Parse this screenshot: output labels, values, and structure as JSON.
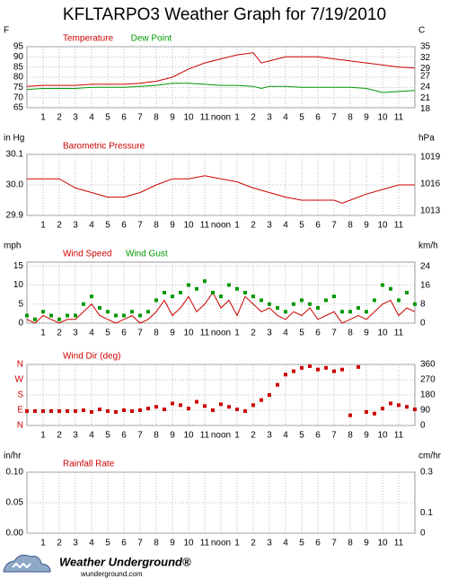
{
  "title": "KFLTARPO3 Weather Graph for 7/19/2010",
  "footer": {
    "brand": "Weather Underground®",
    "site": "wunderground.com"
  },
  "chart_data": [
    {
      "type": "line",
      "y_label": "F",
      "y2_label": "C",
      "x": [
        0,
        1,
        2,
        3,
        4,
        5,
        6,
        7,
        8,
        9,
        10,
        11,
        12,
        13,
        14,
        14.5,
        15,
        16,
        17,
        18,
        19,
        20,
        21,
        22,
        23,
        24
      ],
      "series": [
        {
          "name": "Temperature",
          "color": "#cc0000",
          "kind": "line",
          "values": [
            75.5,
            76,
            76,
            76,
            76.5,
            76.5,
            76.5,
            77,
            78,
            80,
            84,
            87,
            89,
            91,
            92,
            87,
            88,
            90,
            90,
            90,
            89,
            88,
            87,
            86,
            85,
            84.5
          ]
        },
        {
          "name": "Dew Point",
          "color": "#009900",
          "kind": "line",
          "values": [
            74,
            74.5,
            74.5,
            74.5,
            75,
            75,
            75,
            75.5,
            76,
            77,
            77,
            76.5,
            76,
            76,
            75.5,
            74.5,
            75.5,
            75.5,
            75,
            75,
            75,
            75,
            74.5,
            72.5,
            73,
            73.5
          ]
        }
      ],
      "xlim": [
        0,
        24
      ],
      "xticks": [
        1,
        2,
        3,
        4,
        5,
        6,
        7,
        8,
        9,
        10,
        11,
        {
          "value": 12,
          "label": "noon"
        },
        {
          "value": 13,
          "label": "1"
        },
        {
          "value": 14,
          "label": "2"
        },
        {
          "value": 15,
          "label": "3"
        },
        {
          "value": 16,
          "label": "4"
        },
        {
          "value": 17,
          "label": "5"
        },
        {
          "value": 18,
          "label": "6"
        },
        {
          "value": 19,
          "label": "7"
        },
        {
          "value": 20,
          "label": "8"
        },
        {
          "value": 21,
          "label": "9"
        },
        {
          "value": 22,
          "label": "10"
        },
        {
          "value": 23,
          "label": "11"
        }
      ],
      "ylim": [
        65,
        95
      ],
      "yticks": [
        65,
        70,
        75,
        80,
        85,
        90,
        95
      ],
      "y2lim": [
        18.333,
        35
      ],
      "y2ticks": [
        18,
        21,
        24,
        27,
        29,
        32,
        35
      ],
      "grid": true
    },
    {
      "type": "line",
      "y_label": "in Hg",
      "y2_label": "hPa",
      "x": [
        0,
        1,
        2,
        3,
        4,
        5,
        6,
        7,
        8,
        9,
        10,
        11,
        12,
        13,
        14,
        15,
        16,
        17,
        18,
        19,
        19.5,
        20,
        21,
        22,
        23,
        24
      ],
      "series": [
        {
          "name": "Barometric Pressure",
          "color": "#cc0000",
          "kind": "line",
          "values": [
            30.02,
            30.02,
            30.02,
            29.99,
            29.975,
            29.96,
            29.96,
            29.975,
            30,
            30.02,
            30.02,
            30.03,
            30.02,
            30.01,
            29.99,
            29.975,
            29.96,
            29.95,
            29.95,
            29.95,
            29.94,
            29.95,
            29.97,
            29.985,
            30,
            30
          ]
        }
      ],
      "xlim": [
        0,
        24
      ],
      "xticks": [
        1,
        2,
        3,
        4,
        5,
        6,
        7,
        8,
        9,
        10,
        11,
        {
          "value": 12,
          "label": "noon"
        },
        {
          "value": 13,
          "label": "1"
        },
        {
          "value": 14,
          "label": "2"
        },
        {
          "value": 15,
          "label": "3"
        },
        {
          "value": 16,
          "label": "4"
        },
        {
          "value": 17,
          "label": "5"
        },
        {
          "value": 18,
          "label": "6"
        },
        {
          "value": 19,
          "label": "7"
        },
        {
          "value": 20,
          "label": "8"
        },
        {
          "value": 21,
          "label": "9"
        },
        {
          "value": 22,
          "label": "10"
        },
        {
          "value": 23,
          "label": "11"
        }
      ],
      "ylim": [
        29.9,
        30.1
      ],
      "yticks": [
        29.9,
        {
          "value": 30,
          "label": "30.0"
        },
        30.1
      ],
      "y2lim": [
        1012.5,
        1019.3
      ],
      "y2ticks": [
        1013,
        1016,
        1019
      ],
      "grid": true
    },
    {
      "type": "line",
      "y_label": "mph",
      "y2_label": "km/h",
      "x": [
        0,
        0.5,
        1,
        1.5,
        2,
        2.5,
        3,
        3.5,
        4,
        4.5,
        5,
        5.5,
        6,
        6.5,
        7,
        7.5,
        8,
        8.5,
        9,
        9.5,
        10,
        10.5,
        11,
        11.5,
        12,
        12.5,
        13,
        13.5,
        14,
        14.5,
        15,
        15.5,
        16,
        16.5,
        17,
        17.5,
        18,
        18.5,
        19,
        19.5,
        20,
        20.5,
        21,
        21.5,
        22,
        22.5,
        23,
        23.5,
        24
      ],
      "series": [
        {
          "name": "Wind Speed",
          "color": "#cc0000",
          "kind": "line",
          "values": [
            1,
            0,
            2,
            1,
            0,
            1,
            1,
            3,
            5,
            2,
            1,
            0,
            1,
            2,
            0,
            1,
            3,
            6,
            2,
            4,
            7,
            3,
            5,
            8,
            4,
            6,
            2,
            7,
            5,
            3,
            4,
            2,
            1,
            3,
            2,
            4,
            1,
            2,
            3,
            0,
            1,
            2,
            1,
            3,
            5,
            6,
            2,
            4,
            3
          ]
        },
        {
          "name": "Wind Gust",
          "color": "#009900",
          "kind": "scatter",
          "values": [
            2,
            1,
            3,
            2,
            1,
            2,
            2,
            5,
            7,
            4,
            3,
            2,
            2,
            3,
            2,
            3,
            6,
            8,
            7,
            8,
            10,
            9,
            11,
            8,
            7,
            10,
            9,
            8,
            7,
            6,
            5,
            4,
            3,
            5,
            6,
            5,
            4,
            6,
            7,
            3,
            3,
            4,
            3,
            6,
            10,
            9,
            6,
            8,
            5
          ]
        }
      ],
      "xlim": [
        0,
        24
      ],
      "xticks": [
        1,
        2,
        3,
        4,
        5,
        6,
        7,
        8,
        9,
        10,
        11,
        {
          "value": 12,
          "label": "noon"
        },
        {
          "value": 13,
          "label": "1"
        },
        {
          "value": 14,
          "label": "2"
        },
        {
          "value": 15,
          "label": "3"
        },
        {
          "value": 16,
          "label": "4"
        },
        {
          "value": 17,
          "label": "5"
        },
        {
          "value": 18,
          "label": "6"
        },
        {
          "value": 19,
          "label": "7"
        },
        {
          "value": 20,
          "label": "8"
        },
        {
          "value": 21,
          "label": "9"
        },
        {
          "value": 22,
          "label": "10"
        },
        {
          "value": 23,
          "label": "11"
        }
      ],
      "ylim": [
        0,
        16
      ],
      "yticks": [
        0,
        5,
        10,
        15
      ],
      "y2lim": [
        0,
        25.75
      ],
      "y2ticks": [
        0,
        8,
        16,
        24
      ],
      "grid": true
    },
    {
      "type": "scatter",
      "x": [
        0,
        0.5,
        1,
        1.5,
        2,
        2.5,
        3,
        3.5,
        4,
        4.5,
        5,
        5.5,
        6,
        6.5,
        7,
        7.5,
        8,
        8.5,
        9,
        9.5,
        10,
        10.5,
        11,
        11.5,
        12,
        12.5,
        13,
        13.5,
        14,
        14.5,
        15,
        15.5,
        16,
        16.5,
        17,
        17.5,
        18,
        18.5,
        19,
        19.5,
        20,
        20.5,
        21,
        21.5,
        22,
        22.5,
        23,
        23.5,
        24
      ],
      "series": [
        {
          "name": "Wind Dir (deg)",
          "color": "#cc0000",
          "kind": "scatter",
          "values": [
            85,
            85,
            85,
            85,
            85,
            85,
            85,
            90,
            80,
            95,
            85,
            80,
            90,
            85,
            90,
            100,
            110,
            95,
            130,
            120,
            100,
            140,
            115,
            90,
            125,
            110,
            95,
            85,
            120,
            150,
            180,
            240,
            300,
            320,
            340,
            350,
            330,
            340,
            320,
            330,
            60,
            345,
            80,
            70,
            100,
            130,
            120,
            110,
            95
          ]
        }
      ],
      "xlim": [
        0,
        24
      ],
      "xticks": [
        1,
        2,
        3,
        4,
        5,
        6,
        7,
        8,
        9,
        10,
        11,
        {
          "value": 12,
          "label": "noon"
        },
        {
          "value": 13,
          "label": "1"
        },
        {
          "value": 14,
          "label": "2"
        },
        {
          "value": 15,
          "label": "3"
        },
        {
          "value": 16,
          "label": "4"
        },
        {
          "value": 17,
          "label": "5"
        },
        {
          "value": 18,
          "label": "6"
        },
        {
          "value": 19,
          "label": "7"
        },
        {
          "value": 20,
          "label": "8"
        },
        {
          "value": 21,
          "label": "9"
        },
        {
          "value": 22,
          "label": "10"
        },
        {
          "value": 23,
          "label": "11"
        }
      ],
      "ylim": [
        0,
        360
      ],
      "yticks": [
        {
          "value": 0,
          "label": "N"
        },
        {
          "value": 90,
          "label": "E"
        },
        {
          "value": 180,
          "label": "S"
        },
        {
          "value": 270,
          "label": "W"
        },
        {
          "value": 360,
          "label": "N"
        }
      ],
      "ytick_color": "#cc0000",
      "y2lim": [
        0,
        360
      ],
      "y2ticks": [
        0,
        90,
        180,
        270,
        360
      ],
      "grid": true
    },
    {
      "type": "line",
      "y_label": "in/hr",
      "y2_label": "cm/hr",
      "series": [
        {
          "name": "Rainfall Rate",
          "color": "#cc0000",
          "kind": "line"
        }
      ],
      "xlim": [
        0,
        24
      ],
      "xticks": [
        1,
        2,
        3,
        4,
        5,
        6,
        7,
        8,
        9,
        10,
        11,
        {
          "value": 12,
          "label": "noon"
        },
        {
          "value": 13,
          "label": "1"
        },
        {
          "value": 14,
          "label": "2"
        },
        {
          "value": 15,
          "label": "3"
        },
        {
          "value": 16,
          "label": "4"
        },
        {
          "value": 17,
          "label": "5"
        },
        {
          "value": 18,
          "label": "6"
        },
        {
          "value": 19,
          "label": "7"
        },
        {
          "value": 20,
          "label": "8"
        },
        {
          "value": 21,
          "label": "9"
        },
        {
          "value": 22,
          "label": "10"
        },
        {
          "value": 23,
          "label": "11"
        }
      ],
      "ylim": [
        0,
        0.1
      ],
      "yticks": [
        {
          "value": 0,
          "label": "0.00"
        },
        {
          "value": 0.05,
          "label": "0.05"
        },
        {
          "value": 0.1,
          "label": "0.10"
        }
      ],
      "y2lim": [
        0,
        0.3
      ],
      "y2ticks": [
        0,
        0.1,
        0.3
      ],
      "grid": true
    }
  ]
}
